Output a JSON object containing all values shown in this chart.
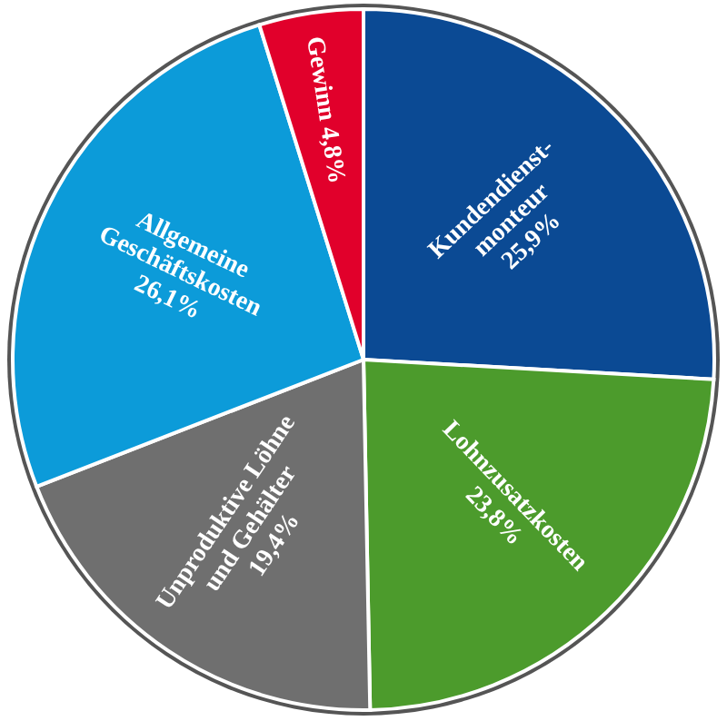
{
  "chart_data": {
    "type": "pie",
    "categories": [
      "Kundendienst-monteur",
      "Lohnzusatzkosten",
      "Unproduktive Löhne und Gehälter",
      "Allgemeine Geschäftskosten",
      "Gewinn"
    ],
    "values": [
      25.9,
      23.8,
      19.4,
      26.1,
      4.8
    ],
    "colors": [
      "#0b4a94",
      "#4c9b2c",
      "#6f6f6f",
      "#0c9bd9",
      "#e1002b"
    ],
    "value_labels": [
      "25,9%",
      "23,8%",
      "19,4%",
      "26,1%",
      "4,8%"
    ]
  }
}
